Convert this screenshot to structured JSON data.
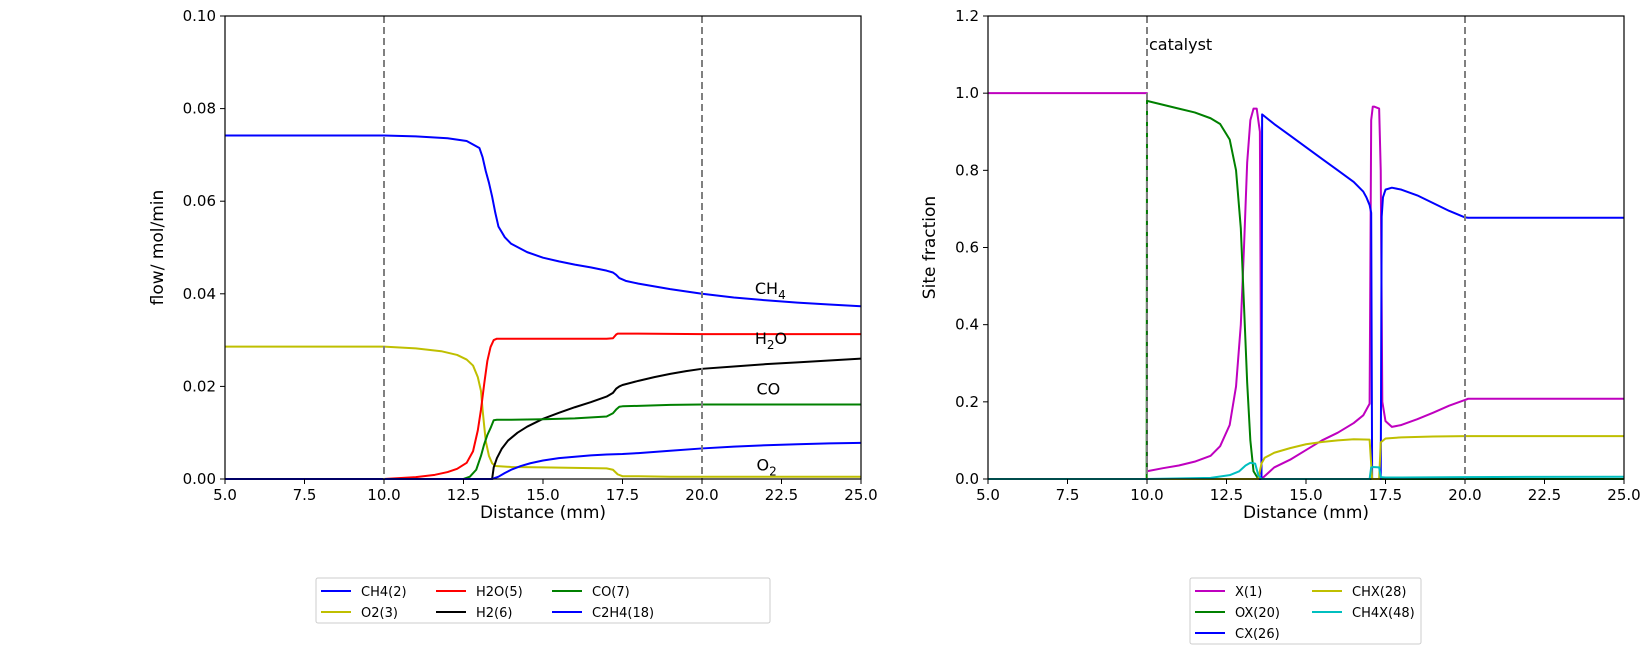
{
  "chart_data": [
    {
      "type": "line",
      "title": "",
      "xlabel": "Distance (mm)",
      "ylabel": "flow/ mol/min",
      "xlim": [
        5.0,
        25.0
      ],
      "ylim": [
        0.0,
        0.1
      ],
      "xticks": [
        "5.0",
        "7.5",
        "10.0",
        "12.5",
        "15.0",
        "17.5",
        "20.0",
        "22.5",
        "25.0"
      ],
      "yticks": [
        "0.00",
        "0.02",
        "0.04",
        "0.06",
        "0.08",
        "0.10"
      ],
      "vlines": [
        10.0,
        20.0
      ],
      "legend_position": "below",
      "annotations": [
        {
          "label": "CH",
          "sub": "4",
          "after": "",
          "x": 21.6,
          "y": 0.04
        },
        {
          "label": "H",
          "sub": "2",
          "after": "O",
          "x": 21.6,
          "y": 0.0292
        },
        {
          "label": "CO",
          "sub": "",
          "after": "",
          "x": 21.65,
          "y": 0.0182
        },
        {
          "label": "O",
          "sub": "2",
          "after": "",
          "x": 21.65,
          "y": 0.0018
        }
      ],
      "series": [
        {
          "name": "CH4(2)",
          "color": "#0000ff",
          "x": [
            5,
            10,
            11,
            12,
            12.6,
            13.0,
            13.1,
            13.2,
            13.3,
            13.4,
            13.5,
            13.6,
            13.8,
            14.0,
            14.5,
            15,
            15.5,
            16,
            16.5,
            17,
            17.2,
            17.3,
            17.4,
            17.6,
            18,
            18.5,
            19,
            20,
            21,
            22,
            23,
            24,
            25
          ],
          "y": [
            0.0742,
            0.0742,
            0.074,
            0.0736,
            0.073,
            0.0715,
            0.0695,
            0.0665,
            0.064,
            0.061,
            0.0575,
            0.0545,
            0.0522,
            0.0508,
            0.049,
            0.0478,
            0.047,
            0.0463,
            0.0457,
            0.045,
            0.0446,
            0.0441,
            0.0434,
            0.0428,
            0.0422,
            0.0416,
            0.041,
            0.04,
            0.0392,
            0.0386,
            0.0381,
            0.0377,
            0.0373
          ]
        },
        {
          "name": "O2(3)",
          "color": "#bfbf00",
          "x": [
            5,
            10,
            11,
            11.8,
            12.3,
            12.6,
            12.8,
            12.95,
            13.05,
            13.1,
            13.15,
            13.2,
            13.3,
            13.4,
            13.5,
            14,
            15,
            16,
            17,
            17.2,
            17.35,
            17.5,
            18,
            19,
            20,
            25
          ],
          "y": [
            0.0286,
            0.0286,
            0.0282,
            0.0276,
            0.0268,
            0.0258,
            0.0245,
            0.022,
            0.019,
            0.015,
            0.0115,
            0.0082,
            0.005,
            0.0034,
            0.0028,
            0.0026,
            0.0025,
            0.0024,
            0.0023,
            0.002,
            0.001,
            0.0006,
            0.0006,
            0.0005,
            0.0005,
            0.0005
          ]
        },
        {
          "name": "H2O(5)",
          "color": "#ff0000",
          "x": [
            5,
            10,
            11,
            11.6,
            12,
            12.3,
            12.6,
            12.8,
            12.95,
            13.05,
            13.15,
            13.25,
            13.35,
            13.45,
            13.55,
            14,
            15,
            16,
            17,
            17.2,
            17.3,
            17.35,
            17.5,
            18,
            20,
            25
          ],
          "y": [
            0.0,
            0.0,
            0.0004,
            0.0009,
            0.0015,
            0.0022,
            0.0035,
            0.006,
            0.0105,
            0.015,
            0.0205,
            0.0255,
            0.0285,
            0.03,
            0.0303,
            0.0303,
            0.0303,
            0.0303,
            0.0303,
            0.0304,
            0.0312,
            0.0314,
            0.0314,
            0.0314,
            0.0313,
            0.0313
          ]
        },
        {
          "name": "H2(6)",
          "color": "#000000",
          "x": [
            5,
            13.4,
            13.45,
            13.55,
            13.7,
            13.9,
            14.2,
            14.5,
            15,
            15.5,
            16,
            16.5,
            17,
            17.2,
            17.3,
            17.4,
            17.5,
            18,
            18.5,
            19,
            19.5,
            20,
            21,
            22,
            23,
            24,
            25
          ],
          "y": [
            0.0,
            0.0,
            0.0025,
            0.0045,
            0.0065,
            0.0083,
            0.01,
            0.0113,
            0.013,
            0.0143,
            0.0155,
            0.0166,
            0.0178,
            0.0186,
            0.0195,
            0.02,
            0.0203,
            0.0212,
            0.022,
            0.0227,
            0.0233,
            0.0238,
            0.0243,
            0.0248,
            0.0252,
            0.0256,
            0.026
          ]
        },
        {
          "name": "CO(7)",
          "color": "#008000",
          "x": [
            5,
            12.5,
            12.7,
            12.9,
            13.05,
            13.15,
            13.25,
            13.35,
            13.45,
            13.55,
            14,
            15,
            16,
            17,
            17.2,
            17.3,
            17.4,
            17.5,
            18,
            19,
            20,
            25
          ],
          "y": [
            0.0,
            0.0,
            0.0005,
            0.002,
            0.005,
            0.0075,
            0.0095,
            0.011,
            0.0127,
            0.0128,
            0.0128,
            0.0129,
            0.0131,
            0.0135,
            0.0142,
            0.015,
            0.0156,
            0.0157,
            0.0158,
            0.016,
            0.0161,
            0.0161
          ]
        },
        {
          "name": "C2H4(18)",
          "color": "#0000ff",
          "x": [
            5,
            13.4,
            13.6,
            13.8,
            14.0,
            14.3,
            14.6,
            15,
            15.5,
            16,
            16.5,
            17,
            17.5,
            18,
            19,
            20,
            21,
            22,
            23,
            24,
            25
          ],
          "y": [
            0.0,
            0.0,
            0.0005,
            0.0013,
            0.002,
            0.0028,
            0.0034,
            0.004,
            0.0045,
            0.0048,
            0.0051,
            0.0053,
            0.0054,
            0.0056,
            0.0061,
            0.0066,
            0.007,
            0.0073,
            0.0075,
            0.0077,
            0.0078
          ]
        }
      ],
      "legend": {
        "ncol": 4,
        "entries": [
          "CH4(2)",
          "O2(3)",
          "H2O(5)",
          "H2(6)",
          "CO(7)",
          "C2H4(18)"
        ]
      }
    },
    {
      "type": "line",
      "title": "",
      "xlabel": "Distance (mm)",
      "ylabel": "Site fraction",
      "xlim": [
        5.0,
        25.0
      ],
      "ylim": [
        0.0,
        1.2
      ],
      "xticks": [
        "5.0",
        "7.5",
        "10.0",
        "12.5",
        "15.0",
        "17.5",
        "20.0",
        "22.5",
        "25.0"
      ],
      "yticks": [
        "0.0",
        "0.2",
        "0.4",
        "0.6",
        "0.8",
        "1.0",
        "1.2"
      ],
      "vlines": [
        10.0,
        20.0
      ],
      "legend_position": "below",
      "annotations": [
        {
          "label": "catalyst",
          "sub": "",
          "after": "",
          "x": 10.0,
          "y": 1.112
        }
      ],
      "series": [
        {
          "name": "X(1)",
          "color": "#bf00bf",
          "x": [
            5,
            10,
            10,
            10.5,
            11,
            11.5,
            12,
            12.3,
            12.6,
            12.8,
            12.95,
            13.05,
            13.15,
            13.25,
            13.35,
            13.45,
            13.55,
            13.6,
            14,
            14.5,
            15,
            15.5,
            16,
            16.5,
            16.8,
            17.0,
            17.05,
            17.1,
            17.15,
            17.3,
            17.35,
            17.4,
            17.5,
            17.7,
            18,
            18.5,
            19,
            19.5,
            20,
            20.1,
            25
          ],
          "y": [
            1.0,
            1.0,
            0.02,
            0.028,
            0.035,
            0.045,
            0.06,
            0.085,
            0.14,
            0.24,
            0.4,
            0.6,
            0.82,
            0.93,
            0.96,
            0.96,
            0.9,
            0.0,
            0.03,
            0.05,
            0.075,
            0.1,
            0.12,
            0.145,
            0.165,
            0.195,
            0.93,
            0.965,
            0.965,
            0.96,
            0.8,
            0.2,
            0.15,
            0.135,
            0.14,
            0.155,
            0.172,
            0.19,
            0.205,
            0.208,
            0.208
          ]
        },
        {
          "name": "OX(20)",
          "color": "#008000",
          "x": [
            5,
            9.99,
            10,
            10.5,
            11,
            11.5,
            12,
            12.3,
            12.6,
            12.8,
            12.95,
            13.05,
            13.15,
            13.25,
            13.35,
            13.5,
            25
          ],
          "y": [
            0.0,
            0.0,
            0.98,
            0.97,
            0.96,
            0.95,
            0.935,
            0.92,
            0.88,
            0.8,
            0.65,
            0.45,
            0.25,
            0.1,
            0.02,
            0.0,
            0.0
          ]
        },
        {
          "name": "CX(26)",
          "color": "#0000ff",
          "x": [
            5,
            13.58,
            13.6,
            13.62,
            14,
            14.5,
            15,
            15.5,
            16,
            16.5,
            16.8,
            16.9,
            17.0,
            17.05,
            17.08,
            17.35,
            17.38,
            17.42,
            17.5,
            17.7,
            18,
            18.5,
            19,
            19.5,
            20,
            20.1,
            25
          ],
          "y": [
            0.0,
            0.0,
            0.0,
            0.945,
            0.92,
            0.89,
            0.86,
            0.83,
            0.8,
            0.77,
            0.745,
            0.73,
            0.71,
            0.69,
            0.0,
            0.0,
            0.68,
            0.73,
            0.75,
            0.755,
            0.75,
            0.735,
            0.715,
            0.695,
            0.678,
            0.677,
            0.677
          ]
        },
        {
          "name": "CHX(28)",
          "color": "#bfbf00",
          "x": [
            5,
            13.5,
            13.6,
            13.7,
            14,
            14.5,
            15,
            15.5,
            16,
            16.5,
            17,
            17.08,
            17.1,
            17.3,
            17.35,
            17.5,
            18,
            19,
            20,
            25
          ],
          "y": [
            0.0,
            0.0,
            0.04,
            0.055,
            0.068,
            0.08,
            0.09,
            0.096,
            0.1,
            0.103,
            0.102,
            0.0,
            0.0,
            0.0,
            0.095,
            0.105,
            0.108,
            0.11,
            0.111,
            0.111
          ]
        },
        {
          "name": "CH4X(48)",
          "color": "#00bfbf",
          "x": [
            5,
            10,
            12,
            12.6,
            12.9,
            13.1,
            13.25,
            13.4,
            13.5,
            13.6,
            16,
            17,
            17.05,
            17.1,
            17.3,
            17.35,
            17.5,
            18,
            20,
            25
          ],
          "y": [
            0.0,
            0.0,
            0.003,
            0.01,
            0.02,
            0.035,
            0.042,
            0.04,
            0.01,
            0.0,
            0.0,
            0.0,
            0.03,
            0.031,
            0.03,
            0.005,
            0.004,
            0.004,
            0.005,
            0.006
          ]
        }
      ],
      "legend": {
        "ncol": 2,
        "entries": [
          "X(1)",
          "OX(20)",
          "CX(26)",
          "CHX(28)",
          "CH4X(48)"
        ]
      }
    }
  ]
}
